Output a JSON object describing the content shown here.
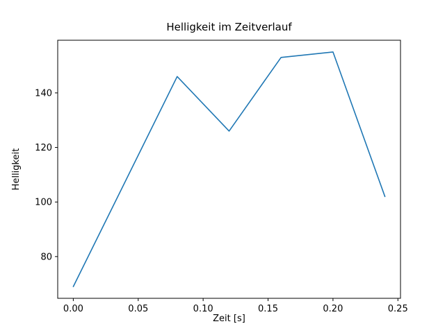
{
  "chart_data": {
    "type": "line",
    "title": "Helligkeit im Zeitverlauf",
    "xlabel": "Zeit [s]",
    "ylabel": "Helligkeit",
    "x": [
      0.0,
      0.08,
      0.12,
      0.16,
      0.2,
      0.24
    ],
    "y": [
      69,
      146,
      126,
      153,
      155,
      102
    ],
    "xlim": [
      -0.012,
      0.252
    ],
    "ylim": [
      64.7,
      159.3
    ],
    "xticks": [
      0.0,
      0.05,
      0.1,
      0.15,
      0.2,
      0.25
    ],
    "xtick_labels": [
      "0.00",
      "0.05",
      "0.10",
      "0.15",
      "0.20",
      "0.25"
    ],
    "yticks": [
      80,
      100,
      120,
      140
    ],
    "ytick_labels": [
      "80",
      "100",
      "120",
      "140"
    ],
    "line_color": "#1f77b4",
    "frame_color": "#000000",
    "background_color": "#ffffff",
    "grid": false,
    "legend": null
  }
}
